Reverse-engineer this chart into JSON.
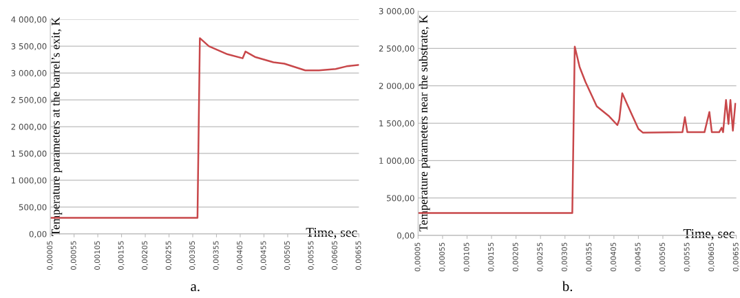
{
  "chart_data": [
    {
      "type": "line",
      "xlabel": "Time, sec",
      "ylabel": "Temperature parameters at the barrel’s exit, K",
      "annotations": [
        "a."
      ],
      "series": [
        {
          "color": "#c8474a",
          "x": [
            5e-05,
            0.00315,
            0.0032,
            0.00339,
            0.00378,
            0.0041,
            0.00416,
            0.00436,
            0.00475,
            0.00498,
            0.00542,
            0.00571,
            0.00606,
            0.00629,
            0.00655
          ],
          "values": [
            300,
            300,
            3650,
            3500,
            3350,
            3275,
            3400,
            3300,
            3200,
            3175,
            3050,
            3050,
            3075,
            3125,
            3150
          ]
        }
      ],
      "xlim": [
        5e-05,
        0.00655
      ],
      "xticks": [
        {
          "value": 5e-05,
          "label": "0,00005"
        },
        {
          "value": 0.00055,
          "label": "0,00055"
        },
        {
          "value": 0.00105,
          "label": "0,00105"
        },
        {
          "value": 0.00155,
          "label": "0,00155"
        },
        {
          "value": 0.00205,
          "label": "0,00205"
        },
        {
          "value": 0.00255,
          "label": "0,00255"
        },
        {
          "value": 0.00305,
          "label": "0,00305"
        },
        {
          "value": 0.00355,
          "label": "0,00355"
        },
        {
          "value": 0.00405,
          "label": "0,00405"
        },
        {
          "value": 0.00455,
          "label": "0,00455"
        },
        {
          "value": 0.00505,
          "label": "0,00505"
        },
        {
          "value": 0.00555,
          "label": "0,00555"
        },
        {
          "value": 0.00605,
          "label": "0,00605"
        },
        {
          "value": 0.00655,
          "label": "0,00655"
        }
      ],
      "ylim": [
        0,
        4000
      ],
      "yticks": [
        {
          "value": 0,
          "label": "0,00"
        },
        {
          "value": 500,
          "label": "500,00"
        },
        {
          "value": 1000,
          "label": "1 000,00"
        },
        {
          "value": 1500,
          "label": "1 500,00"
        },
        {
          "value": 2000,
          "label": "2 000,00"
        },
        {
          "value": 2500,
          "label": "2 500,00"
        },
        {
          "value": 3000,
          "label": "3 000,00"
        },
        {
          "value": 3500,
          "label": "3 500,00"
        },
        {
          "value": 4000,
          "label": "4 000,00"
        }
      ],
      "grid": "y",
      "legend": false
    },
    {
      "type": "line",
      "xlabel": "Time, sec",
      "ylabel": "Temperature parameters near the substrate, K",
      "annotations": [
        "b."
      ],
      "series": [
        {
          "color": "#c8474a",
          "x": [
            5e-05,
            0.0032,
            0.00325,
            0.00335,
            0.00347,
            0.0037,
            0.00394,
            0.00412,
            0.00416,
            0.00422,
            0.00441,
            0.00455,
            0.00464,
            0.00545,
            0.0055,
            0.00555,
            0.0059,
            0.006,
            0.00605,
            0.0062,
            0.00625,
            0.00628,
            0.00634,
            0.00639,
            0.00643,
            0.00648,
            0.00653
          ],
          "values": [
            300,
            300,
            2525,
            2250,
            2050,
            1725,
            1600,
            1475,
            1550,
            1900,
            1625,
            1425,
            1375,
            1380,
            1580,
            1380,
            1380,
            1650,
            1380,
            1380,
            1440,
            1380,
            1810,
            1490,
            1810,
            1400,
            1760
          ]
        }
      ],
      "xlim": [
        5e-05,
        0.00655
      ],
      "xticks": [
        {
          "value": 5e-05,
          "label": "0,00005"
        },
        {
          "value": 0.00055,
          "label": "0,00055"
        },
        {
          "value": 0.00105,
          "label": "0,00105"
        },
        {
          "value": 0.00155,
          "label": "0,00155"
        },
        {
          "value": 0.00205,
          "label": "0,00205"
        },
        {
          "value": 0.00255,
          "label": "0,00255"
        },
        {
          "value": 0.00305,
          "label": "0,00305"
        },
        {
          "value": 0.00355,
          "label": "0,00355"
        },
        {
          "value": 0.00405,
          "label": "0,00405"
        },
        {
          "value": 0.00455,
          "label": "0,00455"
        },
        {
          "value": 0.00505,
          "label": "0,00505"
        },
        {
          "value": 0.00555,
          "label": "0,00555"
        },
        {
          "value": 0.00605,
          "label": "0,00605"
        },
        {
          "value": 0.00655,
          "label": "0,00655"
        }
      ],
      "ylim": [
        0,
        3000
      ],
      "yticks": [
        {
          "value": 0,
          "label": "0,00"
        },
        {
          "value": 500,
          "label": "500,00"
        },
        {
          "value": 1000,
          "label": "1 000,00"
        },
        {
          "value": 1500,
          "label": "1 500,00"
        },
        {
          "value": 2000,
          "label": "2 000,00"
        },
        {
          "value": 2500,
          "label": "2 500,00"
        },
        {
          "value": 3000,
          "label": "3 000,00"
        }
      ],
      "grid": "y",
      "legend": false
    }
  ]
}
